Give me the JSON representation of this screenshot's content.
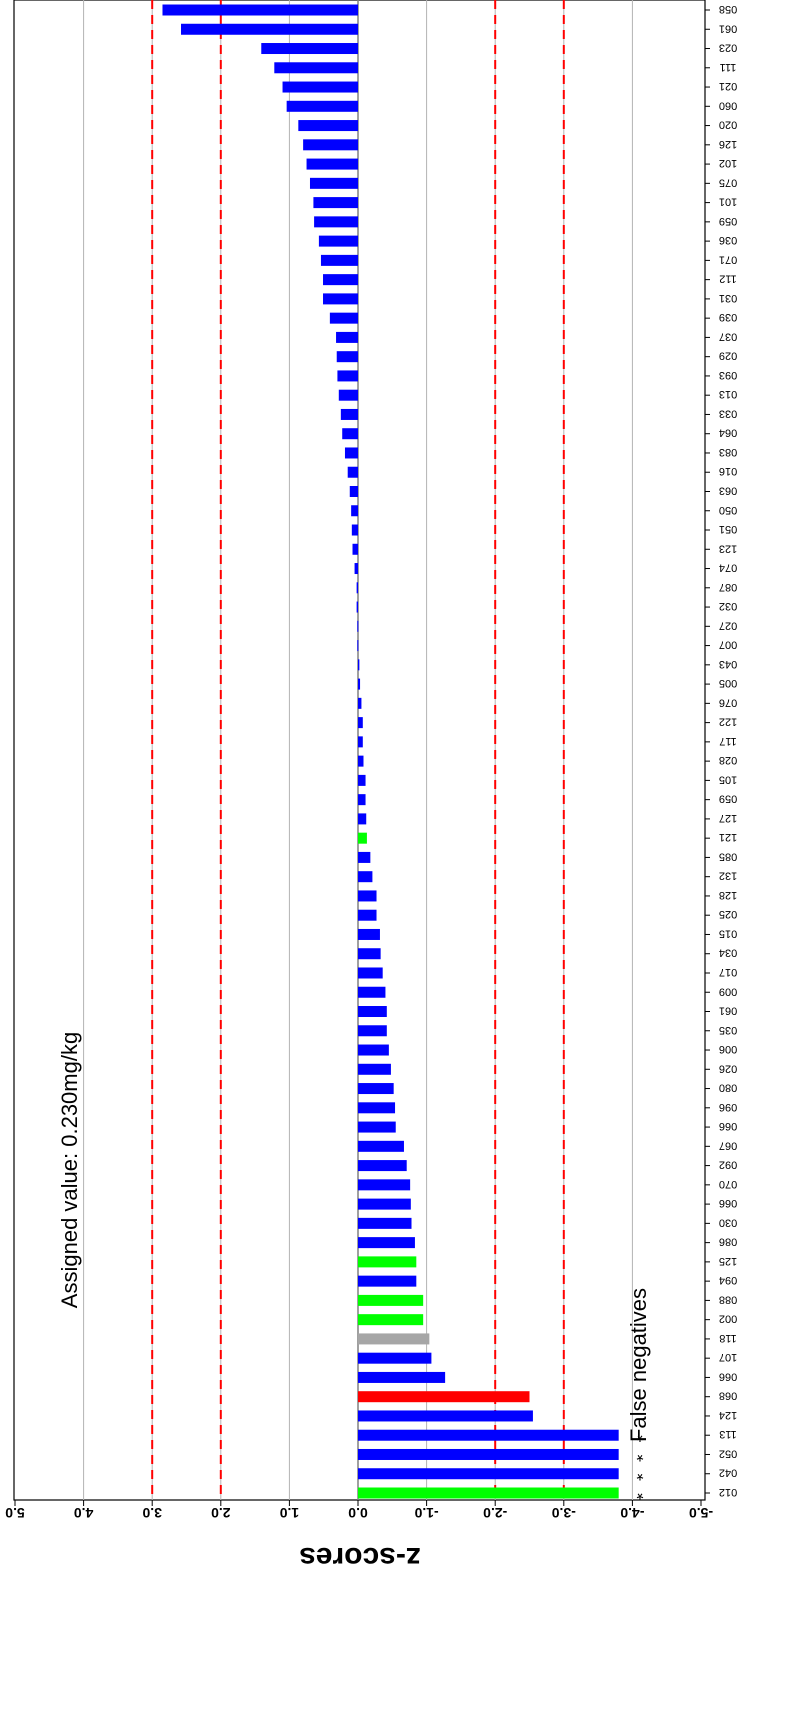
{
  "chart_data": {
    "type": "bar",
    "orientation": "horizontal",
    "rotated": "180deg",
    "ylabel": "z-scores",
    "xlim": [
      -5,
      5
    ],
    "x_ticks": [
      "5.0",
      "4.0",
      "3.0",
      "2.0",
      "1.0",
      "0.0",
      "-1.0",
      "-2.0",
      "-3.0",
      "-4.0",
      "-5.0"
    ],
    "tick_values": [
      5,
      4,
      3,
      2,
      1,
      0,
      -1,
      -2,
      -3,
      -4,
      -5
    ],
    "grid": true,
    "reference_lines": [
      3,
      2,
      -2,
      -3
    ],
    "annotations": {
      "assigned_value": "Assigned value:   0.230mg/kg",
      "false_negatives": "False negatives",
      "star": "*"
    },
    "colors": {
      "blue": "#0000ff",
      "green": "#00ff00",
      "red": "#ff0000",
      "grey": "#a6a6a6",
      "refline": "#ff0000",
      "grid": "#b3b3b3"
    },
    "categories": [
      "012",
      "042",
      "052",
      "113",
      "124",
      "068",
      "066",
      "107",
      "118",
      "002",
      "088",
      "094",
      "125",
      "086",
      "030",
      "066",
      "070",
      "092",
      "067",
      "066",
      "096",
      "080",
      "026",
      "006",
      "035",
      "061",
      "009",
      "017",
      "034",
      "015",
      "025",
      "128",
      "132",
      "085",
      "121",
      "127",
      "059",
      "105",
      "028",
      "117",
      "122",
      "076",
      "005",
      "043",
      "007",
      "027",
      "032",
      "087",
      "074",
      "123",
      "051",
      "050",
      "063",
      "016",
      "083",
      "064",
      "033",
      "013",
      "093",
      "029",
      "037",
      "039",
      "031",
      "112",
      "071",
      "036",
      "059",
      "101",
      "075",
      "102",
      "126",
      "020",
      "060",
      "021",
      "111",
      "023",
      "061",
      "058"
    ],
    "values": [
      -3.8,
      -3.8,
      -3.8,
      -3.8,
      -2.55,
      -2.5,
      -1.27,
      -1.07,
      -1.04,
      -0.95,
      -0.95,
      -0.85,
      -0.85,
      -0.83,
      -0.78,
      -0.77,
      -0.76,
      -0.71,
      -0.67,
      -0.55,
      -0.54,
      -0.52,
      -0.48,
      -0.45,
      -0.42,
      -0.42,
      -0.4,
      -0.36,
      -0.33,
      -0.32,
      -0.27,
      -0.27,
      -0.21,
      -0.18,
      -0.13,
      -0.12,
      -0.11,
      -0.11,
      -0.08,
      -0.07,
      -0.07,
      -0.05,
      -0.03,
      -0.02,
      0.01,
      0.01,
      0.02,
      0.02,
      0.05,
      0.08,
      0.09,
      0.1,
      0.12,
      0.15,
      0.19,
      0.23,
      0.25,
      0.28,
      0.3,
      0.31,
      0.32,
      0.41,
      0.51,
      0.51,
      0.54,
      0.57,
      0.64,
      0.65,
      0.7,
      0.75,
      0.8,
      0.87,
      1.04,
      1.1,
      1.22,
      1.41,
      2.58,
      2.85
    ],
    "bar_colors": [
      "green",
      "blue",
      "blue",
      "blue",
      "blue",
      "red",
      "blue",
      "blue",
      "grey",
      "green",
      "green",
      "blue",
      "green",
      "blue",
      "blue",
      "blue",
      "blue",
      "blue",
      "blue",
      "blue",
      "blue",
      "blue",
      "blue",
      "blue",
      "blue",
      "blue",
      "blue",
      "blue",
      "blue",
      "blue",
      "blue",
      "blue",
      "blue",
      "blue",
      "green",
      "blue",
      "blue",
      "blue",
      "blue",
      "blue",
      "blue",
      "blue",
      "blue",
      "blue",
      "blue",
      "blue",
      "blue",
      "blue",
      "blue",
      "blue",
      "blue",
      "blue",
      "blue",
      "blue",
      "blue",
      "blue",
      "blue",
      "blue",
      "blue",
      "blue",
      "blue",
      "blue",
      "blue",
      "blue",
      "blue",
      "blue",
      "blue",
      "blue",
      "blue",
      "blue",
      "blue",
      "blue",
      "blue",
      "blue",
      "blue",
      "blue",
      "blue",
      "blue"
    ],
    "false_negative_marks": [
      "012",
      "042",
      "052",
      "113"
    ]
  }
}
